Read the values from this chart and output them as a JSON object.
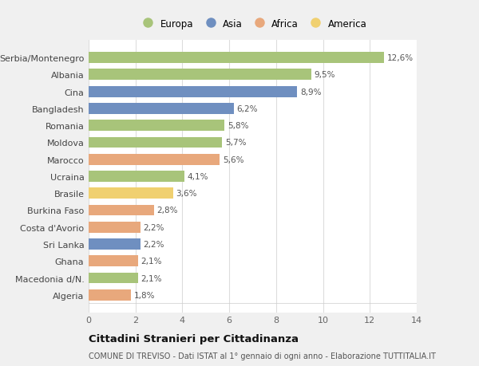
{
  "countries": [
    "Algeria",
    "Macedonia d/N.",
    "Ghana",
    "Sri Lanka",
    "Costa d'Avorio",
    "Burkina Faso",
    "Brasile",
    "Ucraina",
    "Marocco",
    "Moldova",
    "Romania",
    "Bangladesh",
    "Cina",
    "Albania",
    "Serbia/Montenegro"
  ],
  "values": [
    1.8,
    2.1,
    2.1,
    2.2,
    2.2,
    2.8,
    3.6,
    4.1,
    5.6,
    5.7,
    5.8,
    6.2,
    8.9,
    9.5,
    12.6
  ],
  "labels": [
    "1,8%",
    "2,1%",
    "2,1%",
    "2,2%",
    "2,2%",
    "2,8%",
    "3,6%",
    "4,1%",
    "5,6%",
    "5,7%",
    "5,8%",
    "6,2%",
    "8,9%",
    "9,5%",
    "12,6%"
  ],
  "continents": [
    "Africa",
    "Europa",
    "Africa",
    "Asia",
    "Africa",
    "Africa",
    "America",
    "Europa",
    "Africa",
    "Europa",
    "Europa",
    "Asia",
    "Asia",
    "Europa",
    "Europa"
  ],
  "continent_colors": {
    "Europa": "#a8c47a",
    "Asia": "#6f8fc0",
    "Africa": "#e8a87c",
    "America": "#f0d070"
  },
  "legend_order": [
    "Europa",
    "Asia",
    "Africa",
    "America"
  ],
  "fig_bg_color": "#f0f0f0",
  "plot_bg_color": "#ffffff",
  "bar_height": 0.65,
  "xlim": [
    0,
    14
  ],
  "xticks": [
    0,
    2,
    4,
    6,
    8,
    10,
    12,
    14
  ],
  "title_bold": "Cittadini Stranieri per Cittadinanza",
  "subtitle": "COMUNE DI TREVISO - Dati ISTAT al 1° gennaio di ogni anno - Elaborazione TUTTITALIA.IT",
  "label_fontsize": 7.5,
  "tick_fontsize": 8,
  "ytick_fontsize": 8,
  "title_fontsize": 9.5,
  "subtitle_fontsize": 7,
  "legend_fontsize": 8.5
}
